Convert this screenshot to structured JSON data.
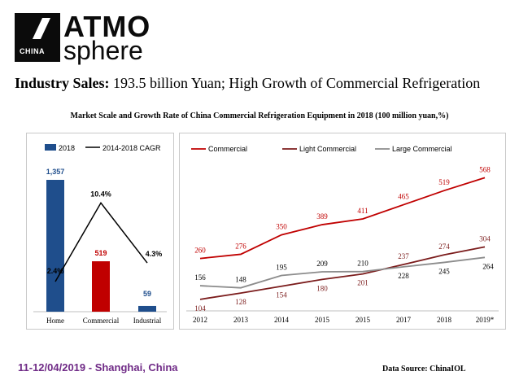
{
  "logo": {
    "badge": "CHINA",
    "line1": "ATMO",
    "line2": "sphere"
  },
  "headline": {
    "bold": "Industry Sales:",
    "rest": " 193.5 billion Yuan; High Growth of Commercial Refrigeration"
  },
  "subtitle": "Market Scale and Growth Rate of China Commercial Refrigeration Equipment in 2018 (100 million yuan,%)",
  "footer": {
    "date": "11-12/04/2019 - Shanghai, China",
    "source": "Data Source: ChinaIOL"
  },
  "colors": {
    "bar_home": "#1f4e8c",
    "bar_commercial": "#c00000",
    "bar_industrial": "#1f4e8c",
    "commercial": "#c00000",
    "light_commercial": "#7b1c1c",
    "large_commercial": "#8c8c8c"
  },
  "chart_data": [
    {
      "type": "bar",
      "categories": [
        "Home",
        "Commercial",
        "Industrial"
      ],
      "series": [
        {
          "name": "2018",
          "values": [
            1357,
            519,
            59
          ],
          "labels": [
            "1,357",
            "519",
            "59"
          ],
          "colors": [
            "#1f4e8c",
            "#c00000",
            "#1f4e8c"
          ]
        },
        {
          "name": "2014-2018 CAGR",
          "type": "line",
          "values": [
            2.4,
            10.4,
            4.3
          ],
          "labels": [
            "2.4%",
            "10.4%",
            "4.3%"
          ],
          "color": "#000000"
        }
      ],
      "ylim": [
        0,
        1600
      ],
      "legend": "top"
    },
    {
      "type": "line",
      "x": [
        "2012",
        "2013",
        "2014",
        "2015",
        "2015",
        "2017",
        "2018",
        "2019*"
      ],
      "series": [
        {
          "name": "Commercial",
          "values": [
            260,
            276,
            350,
            389,
            411,
            465,
            519,
            568
          ],
          "color": "#c00000"
        },
        {
          "name": "Light Commercial",
          "values": [
            104,
            128,
            154,
            180,
            201,
            237,
            274,
            304
          ],
          "color": "#7b1c1c"
        },
        {
          "name": "Large Commercial",
          "values": [
            156,
            148,
            195,
            209,
            210,
            228,
            245,
            264
          ],
          "color": "#8c8c8c"
        }
      ],
      "ylim": [
        60,
        650
      ],
      "legend": "top-left"
    }
  ]
}
